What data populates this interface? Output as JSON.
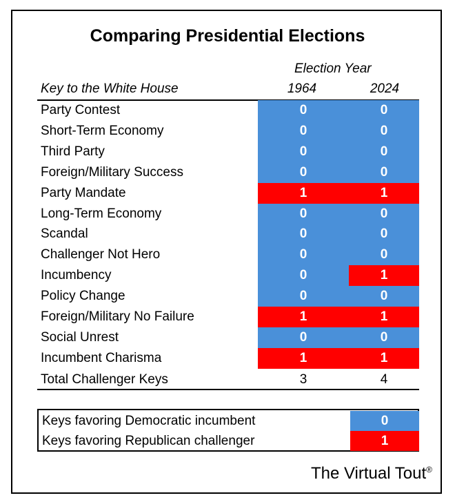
{
  "title": "Comparing Presidential Elections",
  "header": {
    "election_year": "Election Year",
    "key_label": "Key to the White House"
  },
  "colors": {
    "zero": "#4a90d9",
    "one": "#ff0000"
  },
  "chart_data": {
    "type": "table",
    "columns": [
      "1964",
      "2024"
    ],
    "rows": [
      {
        "key": "Party Contest",
        "values": [
          0,
          0
        ]
      },
      {
        "key": "Short-Term Economy",
        "values": [
          0,
          0
        ]
      },
      {
        "key": "Third Party",
        "values": [
          0,
          0
        ]
      },
      {
        "key": "Foreign/Military Success",
        "values": [
          0,
          0
        ]
      },
      {
        "key": "Party Mandate",
        "values": [
          1,
          1
        ]
      },
      {
        "key": "Long-Term Economy",
        "values": [
          0,
          0
        ]
      },
      {
        "key": "Scandal",
        "values": [
          0,
          0
        ]
      },
      {
        "key": "Challenger Not Hero",
        "values": [
          0,
          0
        ]
      },
      {
        "key": "Incumbency",
        "values": [
          0,
          1
        ]
      },
      {
        "key": "Policy Change",
        "values": [
          0,
          0
        ]
      },
      {
        "key": "Foreign/Military No Failure",
        "values": [
          1,
          1
        ]
      },
      {
        "key": "Social Unrest",
        "values": [
          0,
          0
        ]
      },
      {
        "key": "Incumbent Charisma",
        "values": [
          1,
          1
        ]
      }
    ],
    "total": {
      "label": "Total Challenger Keys",
      "values": [
        3,
        4
      ]
    }
  },
  "legend": [
    {
      "label": "Keys favoring Democratic incumbent",
      "value": "0"
    },
    {
      "label": "Keys favoring Republican challenger",
      "value": "1"
    }
  ],
  "brand": "The Virtual Tout",
  "brand_mark": "®"
}
